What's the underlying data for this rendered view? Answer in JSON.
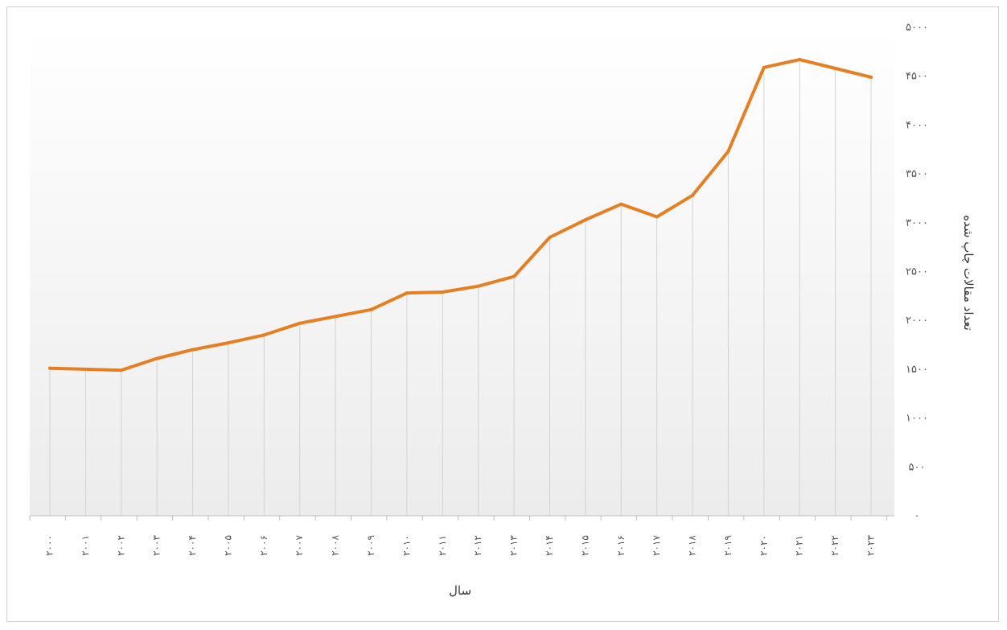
{
  "chart_data": {
    "type": "line",
    "title": "",
    "xlabel": "سال",
    "ylabel": "تعداد مقالات چاپ شده",
    "categories": [
      "۲۰۰۰",
      "۲۰۰۱",
      "۲۰۰۲",
      "۲۰۰۳",
      "۲۰۰۴",
      "۲۰۰۵",
      "۲۰۰۶",
      "۲۰۰۷",
      "۲۰۰۸",
      "۲۰۰۹",
      "۲۰۱۰",
      "۲۰۱۱",
      "۲۰۱۲",
      "۲۰۱۳",
      "۲۰۱۴",
      "۲۰۱۵",
      "۲۰۱۶",
      "۲۰۱۷",
      "۲۰۱۸",
      "۲۰۱۹",
      "۲۰۲۰",
      "۲۰۲۱",
      "۲۰۲۲",
      "۲۰۲۳"
    ],
    "series": [
      {
        "values": [
          1510,
          1500,
          1490,
          1610,
          1700,
          1770,
          1850,
          1970,
          2040,
          2110,
          2280,
          2290,
          2350,
          2450,
          2850,
          3030,
          3190,
          3060,
          3280,
          3730,
          4590,
          4670,
          4580,
          4490
        ],
        "color": "#e67e22"
      }
    ],
    "y_ticks": [
      "۰",
      "۵۰۰",
      "۱۰۰۰",
      "۱۵۰۰",
      "۲۰۰۰",
      "۲۵۰۰",
      "۳۰۰۰",
      "۳۵۰۰",
      "۴۰۰۰",
      "۴۵۰۰",
      "۵۰۰۰"
    ],
    "ylim": [
      0,
      5000
    ],
    "y_axis_side": "right",
    "grid": "vertical drop lines",
    "legend": "none"
  }
}
